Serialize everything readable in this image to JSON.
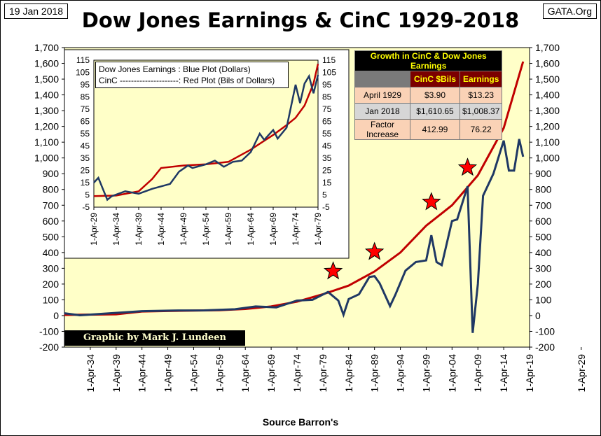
{
  "header": {
    "date": "19 Jan 2018",
    "site": "GATA.Org",
    "title": "Dow Jones Earnings & CinC 1929-2018"
  },
  "footer": {
    "source": "Source Barron's",
    "credit": "Graphic by Mark J. Lundeen"
  },
  "colors": {
    "plot_bg": "#ffffc8",
    "cinc_line": "#c00000",
    "earnings_line": "#1f3864",
    "star": "#ff0000"
  },
  "chart_data": [
    {
      "type": "line",
      "title": "Dow Jones Earnings & CinC 1929-2018",
      "xlabel": "Source Barron's",
      "ylim": [
        -200,
        1700
      ],
      "grid": false,
      "y_ticks": [
        "1,700",
        "1,600",
        "1,500",
        "1,400",
        "1,300",
        "1,200",
        "1,100",
        "1,000",
        "900",
        "800",
        "700",
        "600",
        "500",
        "400",
        "300",
        "200",
        "100",
        "0",
        "-100",
        "-200"
      ],
      "x_ticks": [
        "1-Apr-29",
        "1-Apr-34",
        "1-Apr-39",
        "1-Apr-44",
        "1-Apr-49",
        "1-Apr-54",
        "1-Apr-59",
        "1-Apr-64",
        "1-Apr-69",
        "1-Apr-74",
        "1-Apr-79",
        "1-Apr-84",
        "1-Apr-89",
        "1-Apr-94",
        "1-Apr-99",
        "1-Apr-04",
        "1-Apr-09",
        "1-Apr-14",
        "1-Apr-19"
      ],
      "series": [
        {
          "key": "cinc",
          "x": [
            "Apr 1929",
            "Apr 1939",
            "Apr 1944",
            "Apr 1949",
            "Apr 1959",
            "Apr 1964",
            "Apr 1969",
            "Apr 1974",
            "Apr 1979",
            "Apr 1984",
            "Apr 1989",
            "Apr 1994",
            "Apr 1999",
            "Apr 2004",
            "Apr 2009",
            "Apr 2014",
            "Jan 2018"
          ],
          "values": [
            4,
            8,
            26,
            29,
            34,
            42,
            58,
            88,
            135,
            190,
            280,
            400,
            570,
            700,
            890,
            1190,
            1611
          ]
        },
        {
          "key": "earnings",
          "x": [
            "Apr 1929",
            "Apr 1932",
            "Apr 1944",
            "Apr 1950",
            "Apr 1956",
            "Apr 1962",
            "Apr 1966",
            "Apr 1970",
            "Apr 1974",
            "Apr 1977",
            "Apr 1980",
            "Apr 1982",
            "Apr 1983",
            "Apr 1984",
            "Apr 1986",
            "Apr 1988",
            "Apr 1989",
            "Apr 1990",
            "Apr 1992",
            "Apr 1993",
            "Apr 1995",
            "Apr 1997",
            "Apr 1999",
            "Apr 2000",
            "Apr 2001",
            "Apr 2002",
            "Apr 2004",
            "Apr 2005",
            "Apr 2007",
            "Apr 2008",
            "Apr 2009",
            "Apr 2010",
            "Apr 2012",
            "Apr 2014",
            "Apr 2015",
            "Apr 2016",
            "Apr 2017",
            "Jan 2018"
          ],
          "values": [
            15,
            2,
            28,
            32,
            33,
            40,
            58,
            52,
            95,
            100,
            150,
            95,
            5,
            105,
            135,
            245,
            250,
            205,
            60,
            130,
            285,
            340,
            350,
            510,
            340,
            320,
            600,
            610,
            820,
            -110,
            200,
            760,
            900,
            1110,
            920,
            920,
            1120,
            1008
          ]
        }
      ],
      "stars": [
        "Apr 1981",
        "Apr 1989",
        "Apr 2000",
        "Apr 2007"
      ]
    },
    {
      "type": "line",
      "legend": [
        "Dow Jones Earnings : Blue Plot (Dollars)",
        "CinC ---------------------:  Red Plot (Bils of Dollars)"
      ],
      "ylim": [
        -5,
        115
      ],
      "y_ticks": [
        "115",
        "105",
        "95",
        "85",
        "75",
        "65",
        "55",
        "45",
        "35",
        "25",
        "15",
        "5",
        "-5"
      ],
      "x_ticks": [
        "1-Apr-29",
        "1-Apr-34",
        "1-Apr-39",
        "1-Apr-44",
        "1-Apr-49",
        "1-Apr-54",
        "1-Apr-59",
        "1-Apr-64",
        "1-Apr-69",
        "1-Apr-74",
        "1-Apr-79"
      ],
      "series": [
        {
          "key": "cinc",
          "x": [
            "Apr 1929",
            "Apr 1934",
            "Apr 1939",
            "Apr 1942",
            "Apr 1944",
            "Apr 1949",
            "Apr 1954",
            "Apr 1959",
            "Apr 1964",
            "Apr 1969",
            "Apr 1972",
            "Apr 1974",
            "Apr 1976",
            "Apr 1978",
            "Apr 1979"
          ],
          "values": [
            4,
            4.5,
            8,
            18,
            27,
            29,
            30,
            32,
            42,
            54,
            62,
            68,
            78,
            96,
            112
          ]
        },
        {
          "key": "earnings",
          "x": [
            "Apr 1929",
            "Apr 1930",
            "Apr 1931",
            "Apr 1932",
            "Apr 1933",
            "Apr 1936",
            "Apr 1939",
            "Apr 1942",
            "Apr 1944",
            "Apr 1946",
            "Apr 1948",
            "Apr 1950",
            "Apr 1951",
            "Apr 1954",
            "Apr 1956",
            "Apr 1958",
            "Apr 1960",
            "Apr 1962",
            "Apr 1964",
            "Apr 1966",
            "Apr 1967",
            "Apr 1969",
            "Apr 1970",
            "Apr 1972",
            "Apr 1974",
            "Apr 1975",
            "Apr 1976",
            "Apr 1977",
            "Apr 1978",
            "Apr 1979"
          ],
          "values": [
            15,
            19,
            10,
            1,
            4,
            8,
            6,
            10,
            12,
            14,
            24,
            29,
            27,
            30,
            33,
            28,
            32,
            33,
            40,
            55,
            50,
            58,
            51,
            60,
            95,
            80,
            96,
            102,
            88,
            103
          ]
        }
      ]
    }
  ],
  "table": {
    "title": "Growth in CinC & Dow Jones Earnings",
    "col1": "CinC $Bils",
    "col2": "Earnings",
    "rows": [
      {
        "label": "April 1929",
        "cinc": "$3.90",
        "earnings": "$13.23"
      },
      {
        "label": "Jan 2018",
        "cinc": "$1,610.65",
        "earnings": "$1,008.37"
      },
      {
        "label": "Factor Increase",
        "cinc": "412.99",
        "earnings": "76.22"
      }
    ]
  }
}
